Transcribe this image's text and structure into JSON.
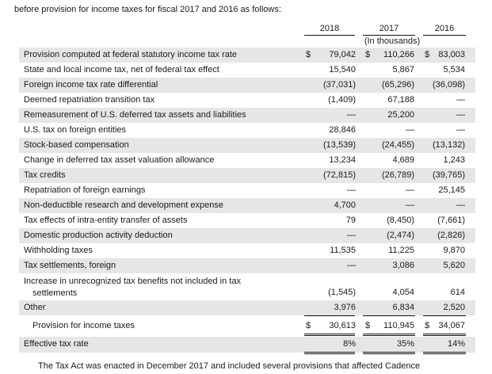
{
  "intro_text": "before provision for income taxes for fiscal 2017 and 2016 as follows:",
  "header": {
    "col_2018": "2018",
    "col_2017": "2017",
    "col_2016": "2016",
    "units": "(In thousands)"
  },
  "rows": [
    {
      "label": "Provision computed at federal statutory income tax rate",
      "cur_2018": "$",
      "v2018": "79,042",
      "cur_2017": "$",
      "v2017": "110,266",
      "cur_2016": "$",
      "v2016": "83,003"
    },
    {
      "label": "State and local income tax, net of federal tax effect",
      "v2018": "15,540",
      "v2017": "5,867",
      "v2016": "5,534"
    },
    {
      "label": "Foreign income tax rate differential",
      "v2018": "(37,031)",
      "v2017": "(65,296)",
      "v2016": "(36,098)"
    },
    {
      "label": "Deemed repatriation transition tax",
      "v2018": "(1,409)",
      "v2017": "67,188",
      "v2016": "—"
    },
    {
      "label": "Remeasurement of U.S. deferred tax assets and liabilities",
      "v2018": "—",
      "v2017": "25,200",
      "v2016": "—"
    },
    {
      "label": "U.S. tax on foreign entities",
      "v2018": "28,846",
      "v2017": "—",
      "v2016": "—"
    },
    {
      "label": "Stock-based compensation",
      "v2018": "(13,539)",
      "v2017": "(24,455)",
      "v2016": "(13,132)"
    },
    {
      "label": "Change in deferred tax asset valuation allowance",
      "v2018": "13,234",
      "v2017": "4,689",
      "v2016": "1,243"
    },
    {
      "label": "Tax credits",
      "v2018": "(72,815)",
      "v2017": "(26,789)",
      "v2016": "(39,765)"
    },
    {
      "label": "Repatriation of foreign earnings",
      "v2018": "—",
      "v2017": "—",
      "v2016": "25,145"
    },
    {
      "label": "Non-deductible research and development expense",
      "v2018": "4,700",
      "v2017": "—",
      "v2016": "—"
    },
    {
      "label": "Tax effects of intra-entity transfer of assets",
      "v2018": "79",
      "v2017": "(8,450)",
      "v2016": "(7,661)"
    },
    {
      "label": "Domestic production activity deduction",
      "v2018": "—",
      "v2017": "(2,474)",
      "v2016": "(2,826)"
    },
    {
      "label": "Withholding taxes",
      "v2018": "11,535",
      "v2017": "11,225",
      "v2016": "9,870"
    },
    {
      "label": "Tax settlements, foreign",
      "v2018": "—",
      "v2017": "3,086",
      "v2016": "5,620"
    },
    {
      "label": "Increase in unrecognized tax benefits not included in tax",
      "label2": "settlements",
      "v2018": "(1,545)",
      "v2017": "4,054",
      "v2016": "614"
    },
    {
      "label": "Other",
      "v2018": "3,976",
      "v2017": "6,834",
      "v2016": "2,520"
    }
  ],
  "total": {
    "label": "Provision for income taxes",
    "cur_2018": "$",
    "v2018": "30,613",
    "cur_2017": "$",
    "v2017": "110,945",
    "cur_2016": "$",
    "v2016": "34,067"
  },
  "effective": {
    "label": "Effective tax rate",
    "v2018": "8%",
    "v2017": "35%",
    "v2016": "14%"
  },
  "outro_text": "The Tax Act was enacted in December 2017 and included several provisions that affected Cadence"
}
